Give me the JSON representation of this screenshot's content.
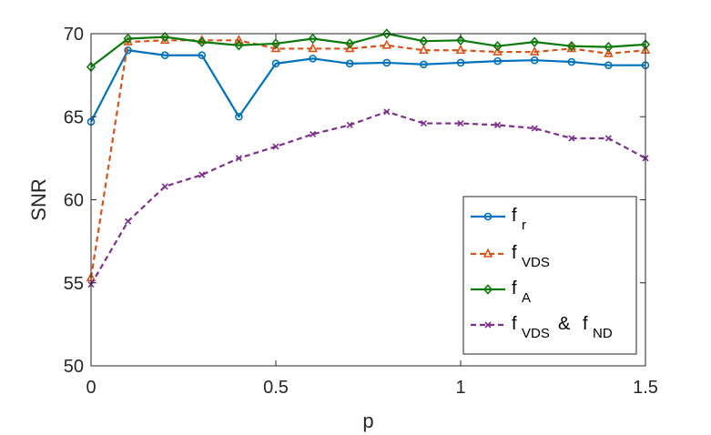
{
  "chart_data": {
    "type": "line",
    "xlabel": "p",
    "ylabel": "SNR",
    "xlim": [
      0,
      1.5
    ],
    "ylim": [
      50,
      70
    ],
    "xticks": [
      0,
      0.5,
      1,
      1.5
    ],
    "xtick_labels": [
      "0",
      "0.5",
      "1",
      "1.5"
    ],
    "yticks": [
      50,
      55,
      60,
      65,
      70
    ],
    "ytick_labels": [
      "50",
      "55",
      "60",
      "65",
      "70"
    ],
    "grid": false,
    "legend_position": "bottom-right",
    "x": [
      0,
      0.1,
      0.2,
      0.3,
      0.4,
      0.5,
      0.6,
      0.7,
      0.8,
      0.9,
      1.0,
      1.1,
      1.2,
      1.3,
      1.4,
      1.5
    ],
    "series": [
      {
        "name": "f_r",
        "legend_main": "f",
        "legend_sub": "r",
        "legend_sub2": "",
        "legend_connector": "",
        "color": "#0072BD",
        "dash": "solid",
        "marker": "circle",
        "values": [
          64.7,
          69.0,
          68.7,
          68.7,
          65.0,
          68.2,
          68.5,
          68.2,
          68.25,
          68.15,
          68.25,
          68.35,
          68.4,
          68.3,
          68.1,
          68.1
        ]
      },
      {
        "name": "f_VDS",
        "legend_main": "f",
        "legend_sub": "VDS",
        "legend_sub2": "",
        "legend_connector": "",
        "color": "#D95319",
        "dash": "dashed",
        "marker": "triangle",
        "values": [
          55.3,
          69.5,
          69.6,
          69.6,
          69.6,
          69.1,
          69.1,
          69.1,
          69.3,
          69.0,
          69.0,
          68.9,
          68.9,
          69.1,
          68.8,
          69.0
        ]
      },
      {
        "name": "f_A",
        "legend_main": "f",
        "legend_sub": "A",
        "legend_sub2": "",
        "legend_connector": "",
        "color": "#0A7A0A",
        "dash": "solid",
        "marker": "diamond",
        "values": [
          68.0,
          69.7,
          69.8,
          69.5,
          69.3,
          69.4,
          69.7,
          69.4,
          70.0,
          69.55,
          69.6,
          69.25,
          69.5,
          69.25,
          69.2,
          69.35
        ]
      },
      {
        "name": "f_VDS & f_ND",
        "legend_main": "f",
        "legend_sub": "VDS",
        "legend_sub2": "ND",
        "legend_connector": "&",
        "color": "#7E2F8E",
        "dash": "dashed",
        "marker": "x",
        "values": [
          54.9,
          58.7,
          60.8,
          61.5,
          62.5,
          63.2,
          63.95,
          64.5,
          65.3,
          64.6,
          64.6,
          64.5,
          64.3,
          63.7,
          63.7,
          62.5
        ]
      }
    ]
  }
}
